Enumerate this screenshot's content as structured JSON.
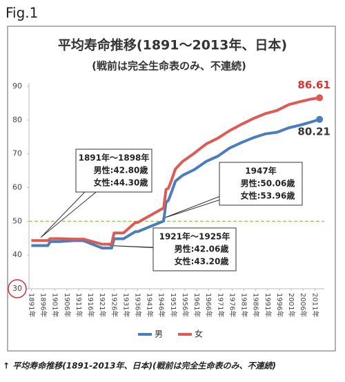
{
  "figure_label": "Fig.1",
  "caption": "↑ 平均寿命推移(1891-2013年、日本)(戦前は完全生命表のみ、不連続)",
  "chart_data": {
    "type": "line",
    "title": "平均寿命推移(1891～2013年、日本)",
    "subtitle": "(戦前は完全生命表のみ、不連続)",
    "x": [
      1891,
      1898,
      1899,
      1903,
      1909,
      1913,
      1921,
      1925,
      1926,
      1930,
      1935,
      1936,
      1947,
      1948,
      1949,
      1950,
      1952,
      1955,
      1960,
      1965,
      1970,
      1975,
      1980,
      1985,
      1990,
      1995,
      2000,
      2005,
      2010,
      2013
    ],
    "series": [
      {
        "name": "男",
        "color": "#4a7ebb",
        "values": [
          42.8,
          42.8,
          43.97,
          43.97,
          44.25,
          44.25,
          42.06,
          42.06,
          44.82,
          44.82,
          46.92,
          46.92,
          50.06,
          55.6,
          56.2,
          58.0,
          61.9,
          63.6,
          65.32,
          67.74,
          69.31,
          71.73,
          73.35,
          74.78,
          75.92,
          76.38,
          77.72,
          78.56,
          79.55,
          80.21
        ]
      },
      {
        "name": "女",
        "color": "#e05a55",
        "values": [
          44.3,
          44.3,
          44.85,
          44.85,
          44.73,
          44.73,
          43.2,
          43.2,
          46.54,
          46.54,
          49.63,
          49.63,
          53.96,
          59.4,
          59.8,
          61.5,
          65.5,
          67.75,
          70.19,
          72.92,
          74.66,
          76.89,
          78.76,
          80.48,
          81.9,
          82.85,
          84.6,
          85.52,
          86.3,
          86.61
        ]
      }
    ],
    "xlim": [
      1890,
      2015
    ],
    "xticks": [
      {
        "value": 1891,
        "label": "1891年"
      },
      {
        "value": 1896,
        "label": "1896年"
      },
      {
        "value": 1901,
        "label": "1901年"
      },
      {
        "value": 1906,
        "label": "1906年"
      },
      {
        "value": 1911,
        "label": "1911年"
      },
      {
        "value": 1916,
        "label": "1916年"
      },
      {
        "value": 1921,
        "label": "1921年"
      },
      {
        "value": 1926,
        "label": "1926年"
      },
      {
        "value": 1931,
        "label": "1931年"
      },
      {
        "value": 1936,
        "label": "1936年"
      },
      {
        "value": 1941,
        "label": "1941年"
      },
      {
        "value": 1946,
        "label": "1946年"
      },
      {
        "value": 1951,
        "label": "1951年"
      },
      {
        "value": 1956,
        "label": "1956年"
      },
      {
        "value": 1961,
        "label": "1961年"
      },
      {
        "value": 1966,
        "label": "1966年"
      },
      {
        "value": 1971,
        "label": "1971年"
      },
      {
        "value": 1976,
        "label": "1976年"
      },
      {
        "value": 1981,
        "label": "1981年"
      },
      {
        "value": 1986,
        "label": "1986年"
      },
      {
        "value": 1991,
        "label": "1991年"
      },
      {
        "value": 1996,
        "label": "1996年"
      },
      {
        "value": 2001,
        "label": "2001年"
      },
      {
        "value": 2006,
        "label": "2006年"
      },
      {
        "value": 2011,
        "label": "2011年"
      }
    ],
    "ylim": [
      30,
      90
    ],
    "yticks": [
      30,
      40,
      50,
      60,
      70,
      80,
      90
    ],
    "reference_line": {
      "value": 50,
      "color": "#92d050"
    },
    "annotations": [
      {
        "lines": [
          "1891年～1898年",
          "男性:42.80歳",
          "女性:44.30歳"
        ]
      },
      {
        "lines": [
          "1947年",
          "男性:50.06歳",
          "女性:53.96歳"
        ]
      },
      {
        "lines": [
          "1921年～1925年",
          "男性:42.06歳",
          "女性:43.20歳"
        ]
      }
    ]
  }
}
